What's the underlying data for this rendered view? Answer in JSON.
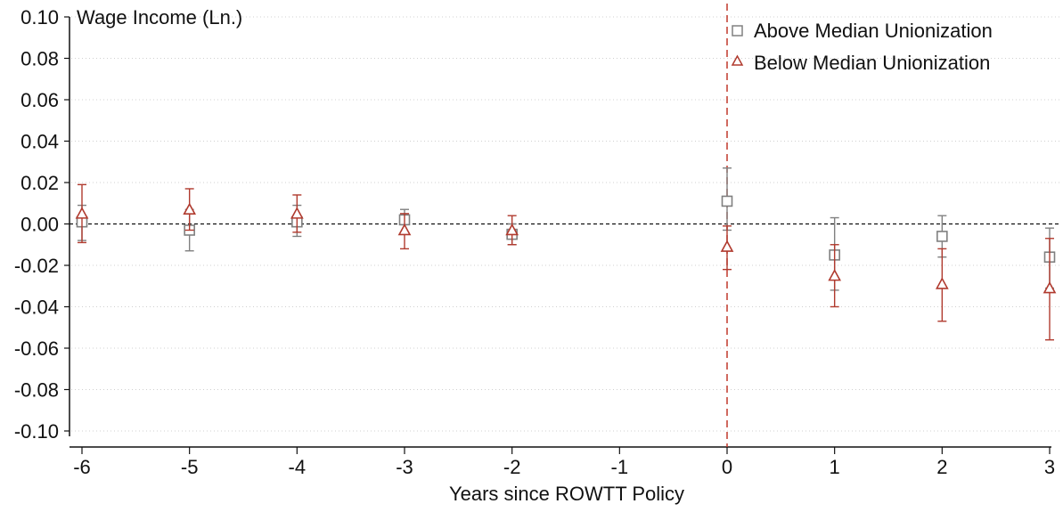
{
  "chart_data": {
    "type": "scatter",
    "title": "",
    "ylabel": "Wage Income (Ln.)",
    "xlabel": "Years since ROWTT Policy",
    "xlim": [
      -6,
      3
    ],
    "ylim": [
      -0.1,
      0.1
    ],
    "xticks": [
      -6,
      -5,
      -4,
      -3,
      -2,
      -1,
      0,
      1,
      2,
      3
    ],
    "xtick_labels": [
      "-6",
      "-5",
      "-4",
      "-3",
      "-2",
      "-1",
      "0",
      "1",
      "2",
      "3"
    ],
    "yticks": [
      0.1,
      0.08,
      0.06,
      0.04,
      0.02,
      0.0,
      -0.02,
      -0.04,
      -0.06,
      -0.08,
      -0.1
    ],
    "ytick_labels": [
      "0.10",
      "0.08",
      "0.06",
      "0.04",
      "0.02",
      "0.00",
      "-0.02",
      "-0.04",
      "-0.06",
      "-0.08",
      "-0.10"
    ],
    "grid": true,
    "reference_lines": {
      "horizontal_y": 0.0,
      "vertical_x": 0
    },
    "legend_position": "top-right",
    "series": [
      {
        "name": "Above Median Unionization",
        "marker": "square",
        "color": "#808080",
        "points": [
          {
            "x": -6,
            "y": 0.001,
            "lo": -0.008,
            "hi": 0.009
          },
          {
            "x": -5,
            "y": -0.003,
            "lo": -0.013,
            "hi": 0.007
          },
          {
            "x": -4,
            "y": 0.001,
            "lo": -0.006,
            "hi": 0.009
          },
          {
            "x": -3,
            "y": 0.002,
            "lo": -0.004,
            "hi": 0.007
          },
          {
            "x": -2,
            "y": -0.005,
            "lo": -0.01,
            "hi": 0.0
          },
          {
            "x": 0,
            "y": 0.011,
            "lo": -0.003,
            "hi": 0.027
          },
          {
            "x": 1,
            "y": -0.015,
            "lo": -0.032,
            "hi": 0.003
          },
          {
            "x": 2,
            "y": -0.006,
            "lo": -0.016,
            "hi": 0.004
          },
          {
            "x": 3,
            "y": -0.016,
            "lo": -0.031,
            "hi": -0.002
          }
        ]
      },
      {
        "name": "Below Median Unionization",
        "marker": "triangle",
        "color": "#b03a2e",
        "points": [
          {
            "x": -6,
            "y": 0.005,
            "lo": -0.009,
            "hi": 0.019
          },
          {
            "x": -5,
            "y": 0.007,
            "lo": -0.003,
            "hi": 0.017
          },
          {
            "x": -4,
            "y": 0.005,
            "lo": -0.004,
            "hi": 0.014
          },
          {
            "x": -3,
            "y": -0.003,
            "lo": -0.012,
            "hi": 0.005
          },
          {
            "x": -2,
            "y": -0.003,
            "lo": -0.01,
            "hi": 0.004
          },
          {
            "x": 0,
            "y": -0.011,
            "lo": -0.022,
            "hi": -0.001
          },
          {
            "x": 1,
            "y": -0.025,
            "lo": -0.04,
            "hi": -0.01
          },
          {
            "x": 2,
            "y": -0.029,
            "lo": -0.047,
            "hi": -0.012
          },
          {
            "x": 3,
            "y": -0.031,
            "lo": -0.056,
            "hi": -0.007
          }
        ]
      }
    ]
  }
}
